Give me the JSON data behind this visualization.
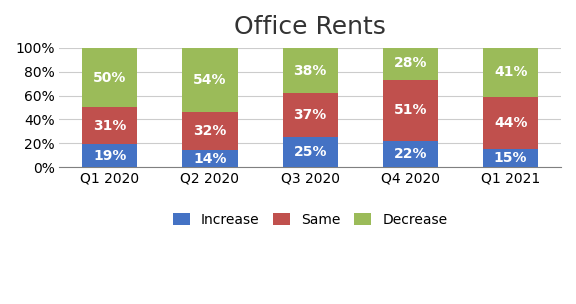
{
  "title": "Office Rents",
  "categories": [
    "Q1 2020",
    "Q2 2020",
    "Q3 2020",
    "Q4 2020",
    "Q1 2021"
  ],
  "increase": [
    19,
    14,
    25,
    22,
    15
  ],
  "same": [
    31,
    32,
    37,
    51,
    44
  ],
  "decrease": [
    50,
    54,
    38,
    28,
    41
  ],
  "increase_labels": [
    "19%",
    "14%",
    "25%",
    "22%",
    "15%"
  ],
  "same_labels": [
    "31%",
    "32%",
    "37%",
    "51%",
    "44%"
  ],
  "decrease_labels": [
    "50%",
    "54%",
    "38%",
    "28%",
    "41%"
  ],
  "color_increase": "#4472C4",
  "color_same": "#C0504D",
  "color_decrease": "#9BBB59",
  "legend_labels": [
    "Increase",
    "Same",
    "Decrease"
  ],
  "title_fontsize": 18,
  "label_fontsize": 10,
  "tick_fontsize": 10,
  "legend_fontsize": 10,
  "bar_width": 0.55,
  "ylim": [
    0,
    100
  ],
  "yticks": [
    0,
    20,
    40,
    60,
    80,
    100
  ],
  "ytick_labels": [
    "0%",
    "20%",
    "40%",
    "60%",
    "80%",
    "100%"
  ],
  "background_color": "#ffffff",
  "border_color": "#808080"
}
